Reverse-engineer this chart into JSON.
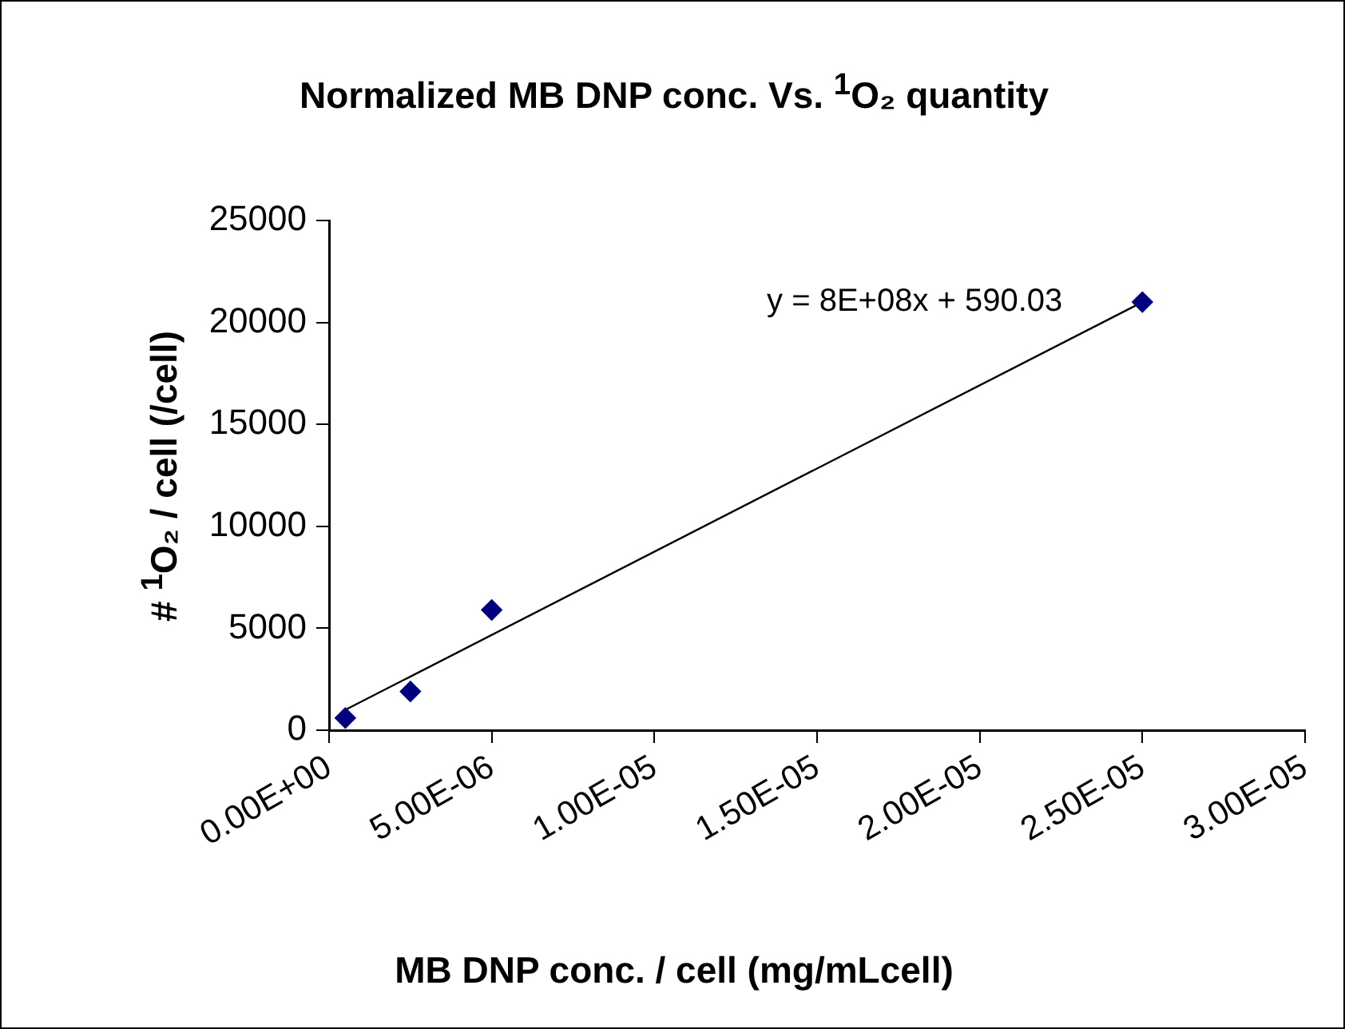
{
  "chart_data": {
    "type": "scatter",
    "title": "Normalized MB DNP conc. Vs. $^{1}$O₂ quantity",
    "xlabel": "MB DNP conc. / cell (mg/mLcell)",
    "ylabel": "# $^{1}$O₂ / cell (/cell)",
    "series": [
      {
        "color": "#000080",
        "x": [
          5e-07,
          2.5e-06,
          5e-06,
          2.5e-05
        ],
        "values": [
          600,
          1900,
          5900,
          21000
        ],
        "marker": "diamond"
      },
      {
        "type": "line",
        "color": "#000000",
        "x": [
          5e-07,
          2.5e-05
        ],
        "values": [
          1000,
          21000
        ],
        "marker": "none",
        "line_style": "solid"
      }
    ],
    "xlim": [
      0,
      3e-05
    ],
    "xticks": [
      {
        "value": 0,
        "label": "0.00E+00"
      },
      {
        "value": 5e-06,
        "label": "5.00E-06"
      },
      {
        "value": 1e-05,
        "label": "1.00E-05"
      },
      {
        "value": 1.5e-05,
        "label": "1.50E-05"
      },
      {
        "value": 2e-05,
        "label": "2.00E-05"
      },
      {
        "value": 2.5e-05,
        "label": "2.50E-05"
      },
      {
        "value": 3e-05,
        "label": "3.00E-05"
      }
    ],
    "ylim": [
      0,
      25000
    ],
    "yticks": [
      0,
      5000,
      10000,
      15000,
      20000,
      25000
    ],
    "grid": false,
    "legend": false,
    "annotations": [
      "y = 8E+08x + 590.03"
    ]
  }
}
